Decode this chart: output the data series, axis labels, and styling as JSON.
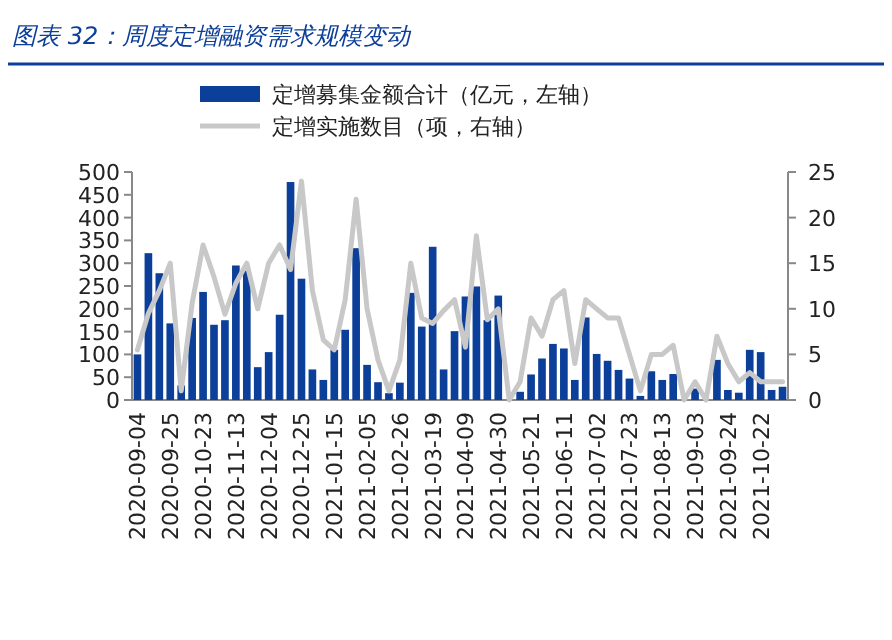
{
  "chart_data": {
    "type": "bar",
    "title": "图表 32：周度定增融资需求规模变动",
    "categories": [
      "2020-09-04",
      null,
      null,
      "2020-09-25",
      null,
      null,
      "2020-10-23",
      null,
      null,
      "2020-11-13",
      null,
      null,
      "2020-12-04",
      null,
      null,
      "2020-12-25",
      null,
      null,
      "2021-01-15",
      null,
      null,
      "2021-02-05",
      null,
      null,
      "2021-02-26",
      null,
      null,
      "2021-03-19",
      null,
      null,
      "2021-04-09",
      null,
      null,
      "2021-04-30",
      null,
      null,
      "2021-05-21",
      null,
      null,
      "2021-06-11",
      null,
      null,
      "2021-07-02",
      null,
      null,
      "2021-07-23",
      null,
      null,
      "2021-08-13",
      null,
      null,
      "2021-09-03",
      null,
      null,
      "2021-09-24",
      null,
      null,
      "2021-10-22",
      null,
      null
    ],
    "series": [
      {
        "name": "定增募集金额合计（亿元，左轴）",
        "color": "#0b3f99",
        "values": [
          100,
          322,
          278,
          168,
          32,
          180,
          237,
          165,
          175,
          295,
          285,
          72,
          105,
          187,
          478,
          266,
          67,
          44,
          110,
          154,
          333,
          77,
          39,
          15,
          38,
          235,
          161,
          336,
          67,
          151,
          227,
          249,
          175,
          229,
          0,
          18,
          56,
          91,
          123,
          113,
          44,
          181,
          101,
          86,
          66,
          47,
          9,
          63,
          44,
          57,
          0,
          25,
          0,
          88,
          22,
          16,
          110,
          105,
          22,
          29
        ]
      },
      {
        "name": "定增实施数目（项，右轴）",
        "type": "line",
        "axis": "y2",
        "color": "#c8c8c8",
        "values": [
          5.5,
          9.5,
          12,
          15,
          1,
          10.6,
          17,
          13.5,
          9.4,
          12.8,
          15,
          10,
          15,
          17,
          14.3,
          24,
          12,
          6.6,
          5.5,
          11,
          22,
          10,
          4.4,
          1,
          4.4,
          15,
          9,
          8.4,
          9.8,
          11,
          5.8,
          18,
          8.8,
          10,
          0,
          2,
          9,
          7,
          11,
          12,
          4,
          11,
          10,
          9,
          9,
          5,
          1,
          5,
          5,
          6,
          0,
          2,
          0,
          7,
          4,
          2,
          3,
          2,
          2,
          2
        ]
      }
    ],
    "ylim": [
      0,
      500
    ],
    "yticks": [
      0,
      50,
      100,
      150,
      200,
      250,
      300,
      350,
      400,
      450,
      500
    ],
    "y2lim": [
      0,
      25
    ],
    "y2ticks": [
      0,
      5,
      10,
      15,
      20,
      25
    ],
    "legend": "top",
    "grid": false
  }
}
